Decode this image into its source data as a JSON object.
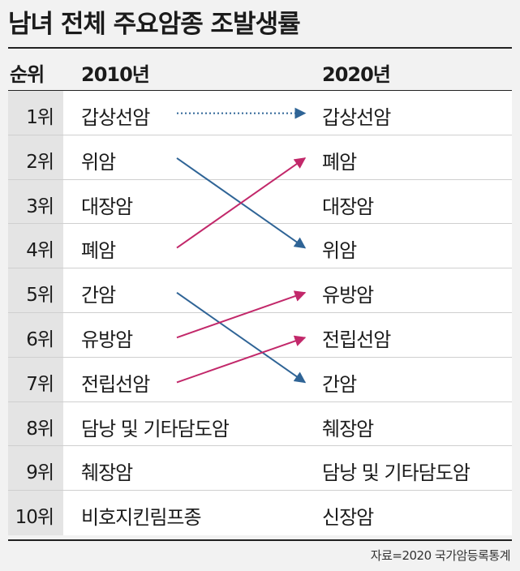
{
  "title": "남녀 전체 주요암종 조발생률",
  "header": {
    "rank": "순위",
    "year_a": "2010년",
    "year_b": "2020년"
  },
  "rows": [
    {
      "rank": "1위",
      "a": "갑상선암",
      "b": "갑상선암"
    },
    {
      "rank": "2위",
      "a": "위암",
      "b": "폐암"
    },
    {
      "rank": "3위",
      "a": "대장암",
      "b": "대장암"
    },
    {
      "rank": "4위",
      "a": "폐암",
      "b": "위암"
    },
    {
      "rank": "5위",
      "a": "간암",
      "b": "유방암"
    },
    {
      "rank": "6위",
      "a": "유방암",
      "b": "전립선암"
    },
    {
      "rank": "7위",
      "a": "전립선암",
      "b": "간암"
    },
    {
      "rank": "8위",
      "a": "담낭 및 기타담도암",
      "b": "췌장암"
    },
    {
      "rank": "9위",
      "a": "췌장암",
      "b": "담낭 및 기타담도암"
    },
    {
      "rank": "10위",
      "a": "비호지킨림프종",
      "b": "신장암"
    }
  ],
  "arrows": [
    {
      "from_rank": 1,
      "to_rank": 1,
      "style": "dotted",
      "color": "#2f6496"
    },
    {
      "from_rank": 2,
      "to_rank": 4,
      "style": "solid",
      "color": "#2f6496"
    },
    {
      "from_rank": 4,
      "to_rank": 2,
      "style": "solid",
      "color": "#c2286a"
    },
    {
      "from_rank": 5,
      "to_rank": 7,
      "style": "solid",
      "color": "#2f6496"
    },
    {
      "from_rank": 6,
      "to_rank": 5,
      "style": "solid",
      "color": "#c2286a"
    },
    {
      "from_rank": 7,
      "to_rank": 6,
      "style": "solid",
      "color": "#c2286a"
    }
  ],
  "source": "자료=2020 국가암등록통계"
}
